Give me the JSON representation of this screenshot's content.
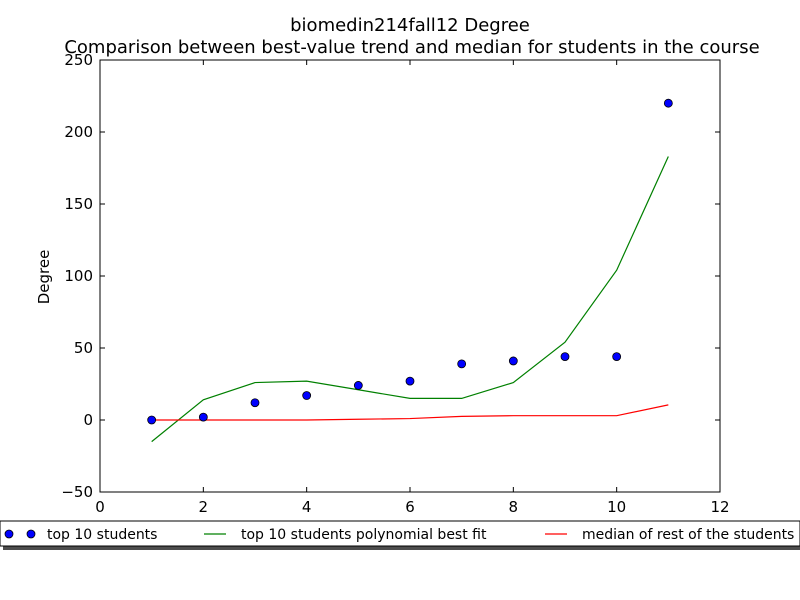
{
  "chart_data": {
    "type": "line",
    "title": "biomedin214fall12 Degree",
    "subtitle": "Comparison between best-value trend and median for students in the course",
    "xlabel": "",
    "ylabel": "Degree",
    "xlim": [
      0,
      12
    ],
    "ylim": [
      -50,
      250
    ],
    "xticks": [
      "0",
      "2",
      "4",
      "6",
      "8",
      "10",
      "12"
    ],
    "yticks": [
      "−50",
      "0",
      "50",
      "100",
      "150",
      "200",
      "250"
    ],
    "grid": false,
    "legend_position": "bottom-center",
    "series": [
      {
        "name": "top 10 students",
        "kind": "scatter",
        "color": "#0000ff",
        "x": [
          1,
          2,
          3,
          4,
          5,
          6,
          7,
          8,
          9,
          10,
          11
        ],
        "y": [
          0,
          2,
          12,
          17,
          24,
          27,
          39,
          41,
          44,
          44,
          220
        ]
      },
      {
        "name": "top 10 students polynomial best fit",
        "kind": "line",
        "color": "#008000",
        "x": [
          1,
          2,
          3,
          4,
          5,
          6,
          7,
          8,
          9,
          10,
          11
        ],
        "y": [
          -15,
          14,
          26,
          27,
          21,
          15,
          15,
          26,
          54,
          104,
          183
        ]
      },
      {
        "name": "median of rest of the students",
        "kind": "line",
        "color": "#ff0000",
        "x": [
          1,
          2,
          3,
          4,
          5,
          6,
          7,
          8,
          9,
          10,
          11
        ],
        "y": [
          0,
          0,
          0,
          0,
          0.5,
          1,
          2.5,
          3,
          3,
          3,
          10.5
        ]
      }
    ]
  }
}
